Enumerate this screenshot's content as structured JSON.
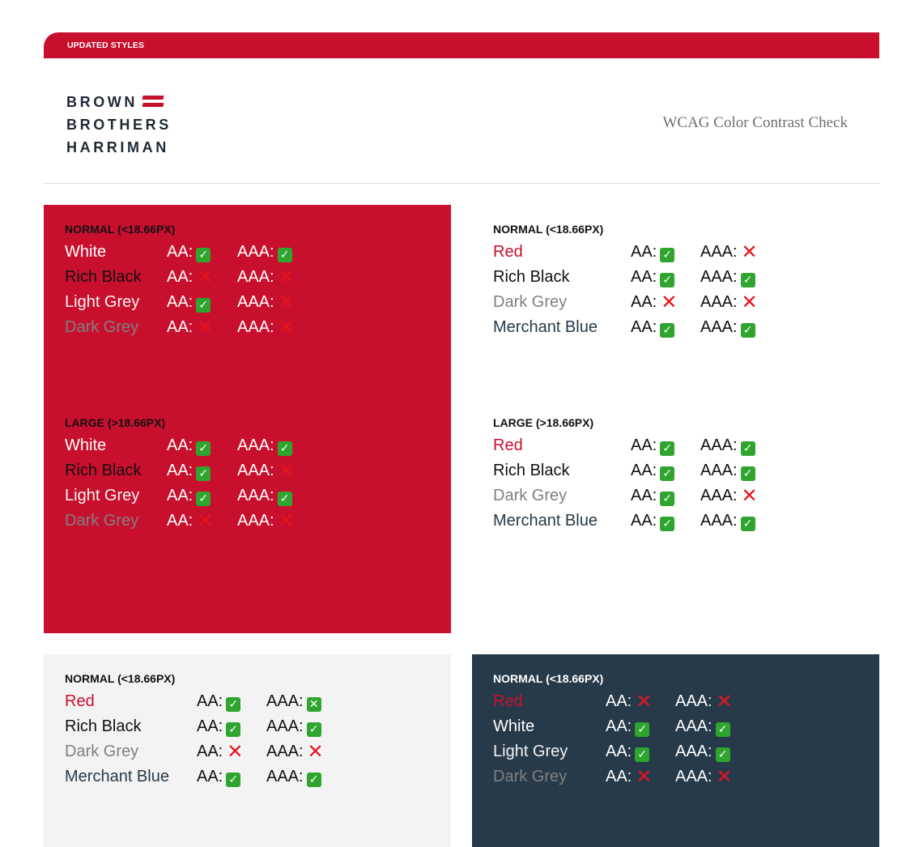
{
  "banner": {
    "label": "UPDATED STYLES"
  },
  "logo": {
    "lines": [
      "BROWN",
      "BROTHERS",
      "HARRIMAN"
    ]
  },
  "header": {
    "title": "WCAG Color Contrast Check"
  },
  "colors": {
    "red": "#c8102e",
    "rich_black": "#111111",
    "white": "#ffffff",
    "light_grey": "#f4f3f3",
    "dark_grey": "#808080",
    "merchant_blue": "#263a4a",
    "panel_light": "#f4f3f3",
    "panel_navy": "#263a4a"
  },
  "panels": [
    {
      "background": "#c8102e",
      "groups": [
        {
          "title": "NORMAL (<18.66PX)",
          "rows": [
            {
              "name": "White",
              "color": "#ffffff",
              "aa_label": "AA:",
              "aa": "pass",
              "aaa_label": "AAA:",
              "aaa": "pass"
            },
            {
              "name": "Rich Black",
              "color": "#111111",
              "aa_label": "AA:",
              "aa": "fail",
              "aaa_label": "AAA:",
              "aaa": "fail"
            },
            {
              "name": "Light Grey",
              "color": "#f4f3f3",
              "aa_label": "AA:",
              "aa": "pass",
              "aaa_label": "AAA:",
              "aaa": "fail"
            },
            {
              "name": "Dark Grey",
              "color": "#808080",
              "aa_label": "AA:",
              "aa": "fail",
              "aaa_label": "AAA:",
              "aaa": "fail"
            }
          ]
        },
        {
          "title": "LARGE (>18.66PX)",
          "rows": [
            {
              "name": "White",
              "color": "#ffffff",
              "aa_label": "AA:",
              "aa": "pass",
              "aaa_label": "AAA:",
              "aaa": "pass"
            },
            {
              "name": "Rich Black",
              "color": "#111111",
              "aa_label": "AA:",
              "aa": "pass",
              "aaa_label": "AAA:",
              "aaa": "fail"
            },
            {
              "name": "Light Grey",
              "color": "#f4f3f3",
              "aa_label": "AA:",
              "aa": "pass",
              "aaa_label": "AAA:",
              "aaa": "pass"
            },
            {
              "name": "Dark Grey",
              "color": "#808080",
              "aa_label": "AA:",
              "aa": "fail",
              "aaa_label": "AAA:",
              "aaa": "fail"
            }
          ]
        }
      ]
    },
    {
      "background": "#ffffff",
      "groups": [
        {
          "title": "NORMAL (<18.66PX)",
          "rows": [
            {
              "name": "Red",
              "color": "#c8102e",
              "aa_label": "AA:",
              "aa": "pass",
              "aaa_label": "AAA:",
              "aaa": "fail"
            },
            {
              "name": "Rich Black",
              "color": "#111111",
              "aa_label": "AA:",
              "aa": "pass",
              "aaa_label": "AAA:",
              "aaa": "pass"
            },
            {
              "name": "Dark Grey",
              "color": "#808080",
              "aa_label": "AA:",
              "aa": "fail",
              "aaa_label": "AAA:",
              "aaa": "fail"
            },
            {
              "name": "Merchant Blue",
              "color": "#263a4a",
              "aa_label": "AA:",
              "aa": "pass",
              "aaa_label": "AAA:",
              "aaa": "pass"
            }
          ]
        },
        {
          "title": "LARGE (>18.66PX)",
          "rows": [
            {
              "name": "Red",
              "color": "#c8102e",
              "aa_label": "AA:",
              "aa": "pass",
              "aaa_label": "AAA:",
              "aaa": "pass"
            },
            {
              "name": "Rich Black",
              "color": "#111111",
              "aa_label": "AA:",
              "aa": "pass",
              "aaa_label": "AAA:",
              "aaa": "pass"
            },
            {
              "name": "Dark Grey",
              "color": "#808080",
              "aa_label": "AA:",
              "aa": "pass",
              "aaa_label": "AAA:",
              "aaa": "fail"
            },
            {
              "name": "Merchant Blue",
              "color": "#263a4a",
              "aa_label": "AA:",
              "aa": "pass",
              "aaa_label": "AAA:",
              "aaa": "pass"
            }
          ]
        }
      ]
    },
    {
      "background": "#f4f3f3",
      "groups": [
        {
          "title": "NORMAL (<18.66PX)",
          "rows": [
            {
              "name": "Red",
              "color": "#c8102e",
              "aa_label": "AA:",
              "aa": "pass",
              "aaa_label": "AAA:",
              "aaa": "boxfail"
            },
            {
              "name": "Rich Black",
              "color": "#111111",
              "aa_label": "AA:",
              "aa": "pass",
              "aaa_label": "AAA:",
              "aaa": "pass"
            },
            {
              "name": "Dark Grey",
              "color": "#808080",
              "aa_label": "AA:",
              "aa": "fail",
              "aaa_label": "AAA:",
              "aaa": "fail"
            },
            {
              "name": "Merchant Blue",
              "color": "#263a4a",
              "aa_label": "AA:",
              "aa": "pass",
              "aaa_label": "AAA:",
              "aaa": "pass"
            }
          ]
        }
      ]
    },
    {
      "background": "#263a4a",
      "groups": [
        {
          "title": "NORMAL (<18.66PX)",
          "rows": [
            {
              "name": "Red",
              "color": "#c8102e",
              "aa_label": "AA:",
              "aa": "fail",
              "aaa_label": "AAA:",
              "aaa": "fail"
            },
            {
              "name": "White",
              "color": "#ffffff",
              "aa_label": "AA:",
              "aa": "pass",
              "aaa_label": "AAA:",
              "aaa": "pass"
            },
            {
              "name": "Light Grey",
              "color": "#f4f3f3",
              "aa_label": "AA:",
              "aa": "pass",
              "aaa_label": "AAA:",
              "aaa": "pass"
            },
            {
              "name": "Dark Grey",
              "color": "#808080",
              "aa_label": "AA:",
              "aa": "fail",
              "aaa_label": "AAA:",
              "aaa": "fail"
            }
          ]
        }
      ]
    }
  ]
}
